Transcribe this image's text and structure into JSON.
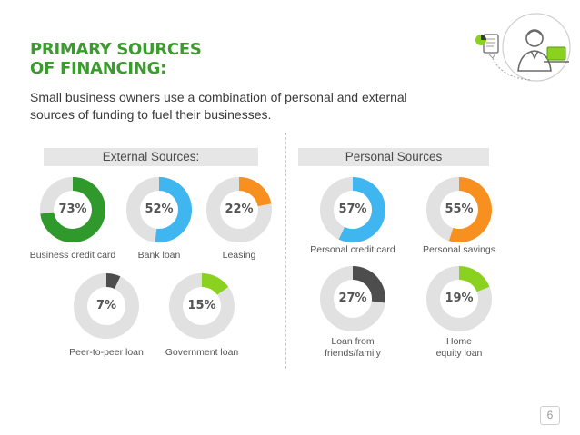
{
  "title": "PRIMARY SOURCES\nOF FINANCING:",
  "subtitle": "Small business owners use a combination of personal and external sources of funding to fuel their businesses.",
  "page_number": "6",
  "colors": {
    "title": "#3b9b2e",
    "track": "#e1e1e1",
    "dark_green": "#2f9a2b",
    "blue": "#3fb6f0",
    "orange": "#f7901e",
    "gray": "#4d4d4d",
    "lime": "#8bd120"
  },
  "chart_data": {
    "type": "pie",
    "title": "PRIMARY SOURCES OF FINANCING:",
    "groups": [
      {
        "name": "External Sources:",
        "items": [
          {
            "label": "Business credit card",
            "value": 73,
            "display": "73%",
            "color": "#2f9a2b"
          },
          {
            "label": "Bank loan",
            "value": 52,
            "display": "52%",
            "color": "#3fb6f0"
          },
          {
            "label": "Leasing",
            "value": 22,
            "display": "22%",
            "color": "#f7901e"
          },
          {
            "label": "Peer-to-peer loan",
            "value": 7,
            "display": "7%",
            "color": "#4d4d4d"
          },
          {
            "label": "Government loan",
            "value": 15,
            "display": "15%",
            "color": "#8bd120"
          }
        ]
      },
      {
        "name": "Personal Sources",
        "items": [
          {
            "label": "Personal credit card",
            "value": 57,
            "display": "57%",
            "color": "#3fb6f0"
          },
          {
            "label": "Personal savings",
            "value": 55,
            "display": "55%",
            "color": "#f7901e"
          },
          {
            "label": "Loan from\nfriends/family",
            "value": 27,
            "display": "27%",
            "color": "#4d4d4d"
          },
          {
            "label": "Home\nequity loan",
            "value": 19,
            "display": "19%",
            "color": "#8bd120"
          }
        ]
      }
    ]
  }
}
